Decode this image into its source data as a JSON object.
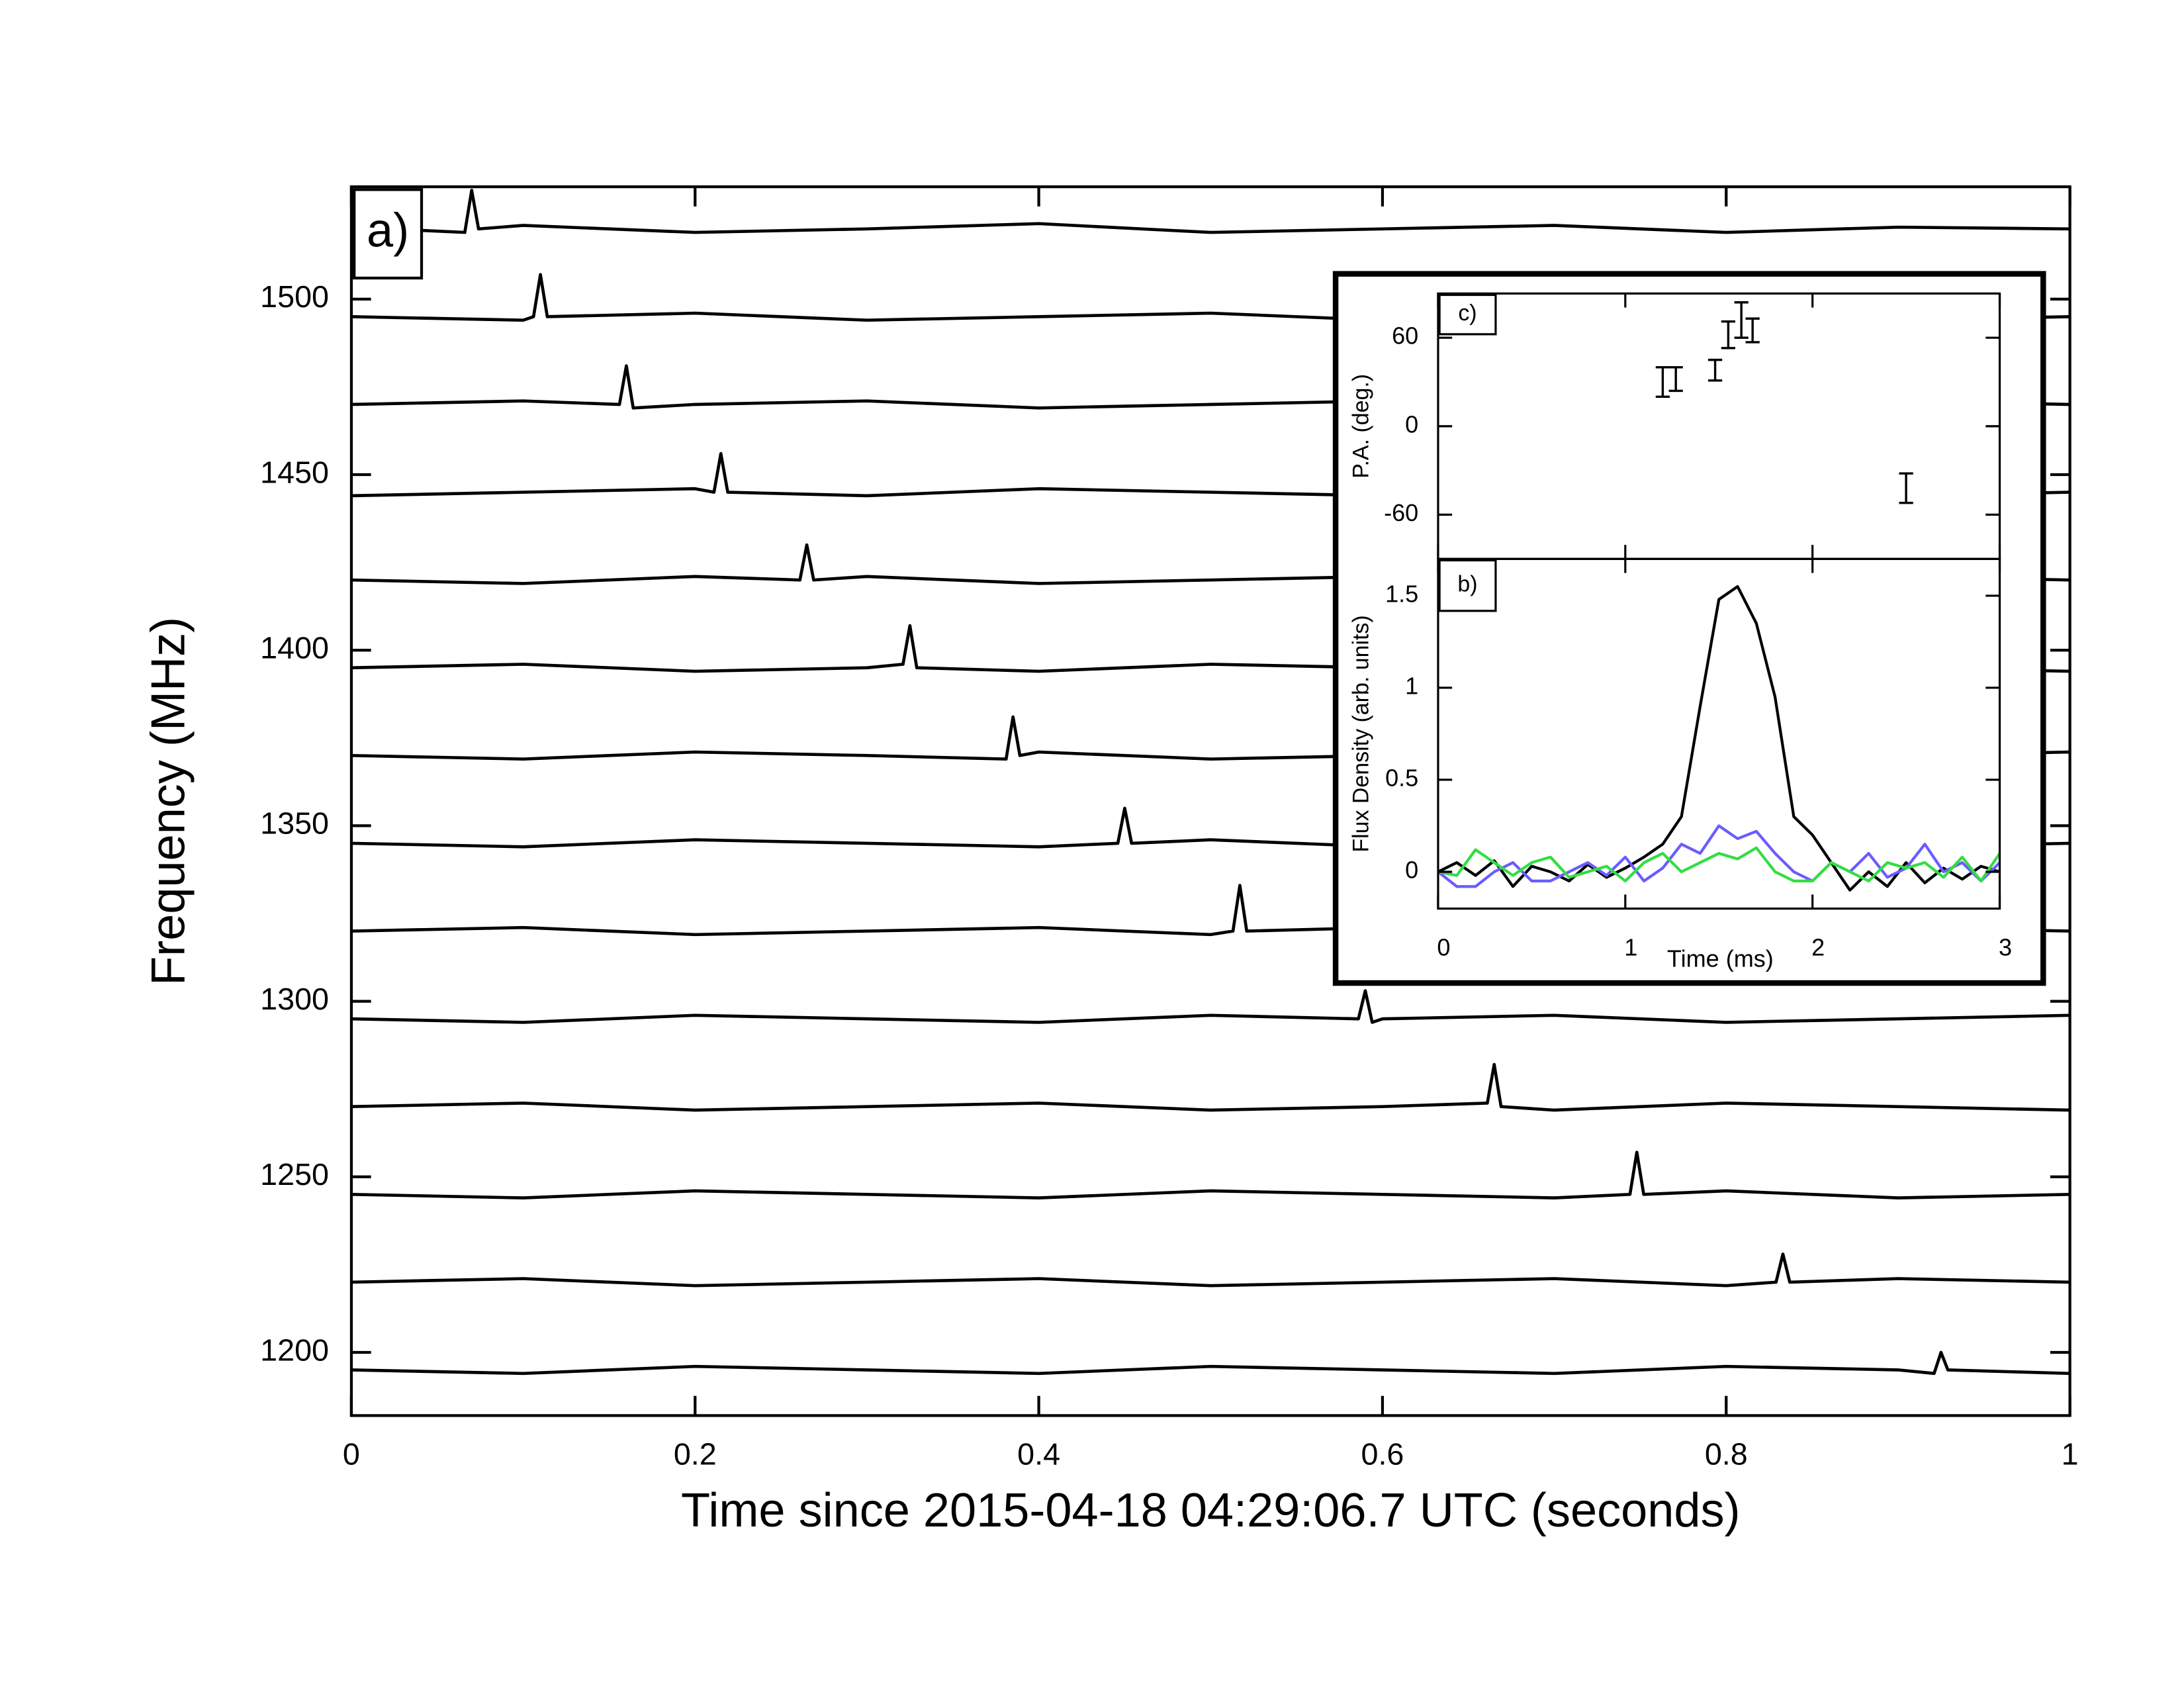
{
  "chart_data": [
    {
      "type": "line",
      "annotation": "a)",
      "xlabel": "Time since 2015-04-18 04:29:06.7 UTC (seconds)",
      "ylabel": "Frequency (MHz)",
      "xlim": [
        0,
        1
      ],
      "xticks": [
        0,
        0.2,
        0.4,
        0.6,
        0.8,
        1
      ],
      "ylim": [
        1182,
        1532
      ],
      "yticks": [
        1200,
        1250,
        1300,
        1350,
        1400,
        1450,
        1500
      ],
      "series": [
        {
          "color": "#000000",
          "x": [
            0,
            0.066,
            0.07,
            0.074,
            0.1,
            0.2,
            0.3,
            0.4,
            0.5,
            0.6,
            0.7,
            0.8,
            0.9,
            1
          ],
          "values": [
            1520.5,
            1519,
            1531,
            1520,
            1521,
            1519,
            1520,
            1521.5,
            1519,
            1520,
            1521,
            1519,
            1520.5,
            1520
          ]
        },
        {
          "color": "#000000",
          "x": [
            0,
            0.1,
            0.106,
            0.11,
            0.114,
            0.2,
            0.3,
            0.4,
            0.5,
            0.6,
            0.7,
            0.8,
            0.9,
            1
          ],
          "values": [
            1495,
            1494,
            1495,
            1507,
            1495,
            1496,
            1494,
            1495,
            1496,
            1494,
            1495,
            1496,
            1494,
            1495
          ]
        },
        {
          "color": "#000000",
          "x": [
            0,
            0.1,
            0.156,
            0.16,
            0.164,
            0.2,
            0.3,
            0.4,
            0.5,
            0.6,
            0.7,
            0.8,
            0.9,
            1
          ],
          "values": [
            1470,
            1471,
            1470,
            1481,
            1469,
            1470,
            1471,
            1469,
            1470,
            1471,
            1469,
            1470,
            1471,
            1470
          ]
        },
        {
          "color": "#000000",
          "x": [
            0,
            0.1,
            0.2,
            0.211,
            0.215,
            0.219,
            0.3,
            0.4,
            0.5,
            0.6,
            0.7,
            0.8,
            0.9,
            1
          ],
          "values": [
            1444,
            1445,
            1446,
            1445,
            1456,
            1445,
            1444,
            1446,
            1445,
            1444,
            1446,
            1445,
            1444,
            1445
          ]
        },
        {
          "color": "#000000",
          "x": [
            0,
            0.1,
            0.2,
            0.261,
            0.265,
            0.269,
            0.3,
            0.4,
            0.5,
            0.6,
            0.7,
            0.8,
            0.9,
            1
          ],
          "values": [
            1420,
            1419,
            1421,
            1420,
            1430,
            1420,
            1421,
            1419,
            1420,
            1421,
            1419,
            1420,
            1421,
            1420
          ]
        },
        {
          "color": "#000000",
          "x": [
            0,
            0.1,
            0.2,
            0.3,
            0.321,
            0.325,
            0.329,
            0.4,
            0.5,
            0.6,
            0.7,
            0.8,
            0.9,
            1
          ],
          "values": [
            1395,
            1396,
            1394,
            1395,
            1396,
            1407,
            1395,
            1394,
            1396,
            1395,
            1394,
            1396,
            1395,
            1394
          ]
        },
        {
          "color": "#000000",
          "x": [
            0,
            0.1,
            0.2,
            0.3,
            0.381,
            0.385,
            0.389,
            0.4,
            0.5,
            0.6,
            0.7,
            0.8,
            0.9,
            1
          ],
          "values": [
            1370,
            1369,
            1371,
            1370,
            1369,
            1381,
            1370,
            1371,
            1369,
            1370,
            1371,
            1369,
            1370,
            1371
          ]
        },
        {
          "color": "#000000",
          "x": [
            0,
            0.1,
            0.2,
            0.3,
            0.4,
            0.446,
            0.45,
            0.454,
            0.5,
            0.6,
            0.7,
            0.8,
            0.9,
            1
          ],
          "values": [
            1345,
            1344,
            1346,
            1345,
            1344,
            1345,
            1355,
            1345,
            1346,
            1344,
            1345,
            1346,
            1344,
            1345
          ]
        },
        {
          "color": "#000000",
          "x": [
            0,
            0.1,
            0.2,
            0.3,
            0.4,
            0.5,
            0.513,
            0.517,
            0.521,
            0.6,
            0.7,
            0.8,
            0.9,
            1
          ],
          "values": [
            1320,
            1321,
            1319,
            1320,
            1321,
            1319,
            1320,
            1333,
            1320,
            1321,
            1319,
            1320,
            1321,
            1320
          ]
        },
        {
          "color": "#000000",
          "x": [
            0,
            0.1,
            0.2,
            0.3,
            0.4,
            0.5,
            0.586,
            0.59,
            0.594,
            0.6,
            0.7,
            0.8,
            0.9,
            1
          ],
          "values": [
            1295,
            1294,
            1296,
            1295,
            1294,
            1296,
            1295,
            1303,
            1294,
            1295,
            1296,
            1294,
            1295,
            1296
          ]
        },
        {
          "color": "#000000",
          "x": [
            0,
            0.1,
            0.2,
            0.3,
            0.4,
            0.5,
            0.6,
            0.661,
            0.665,
            0.669,
            0.7,
            0.8,
            0.9,
            1
          ],
          "values": [
            1270,
            1271,
            1269,
            1270,
            1271,
            1269,
            1270,
            1271,
            1282,
            1270,
            1269,
            1271,
            1270,
            1269
          ]
        },
        {
          "color": "#000000",
          "x": [
            0,
            0.1,
            0.2,
            0.3,
            0.4,
            0.5,
            0.6,
            0.7,
            0.744,
            0.748,
            0.752,
            0.8,
            0.9,
            1
          ],
          "values": [
            1245,
            1244,
            1246,
            1245,
            1244,
            1246,
            1245,
            1244,
            1245,
            1257,
            1245,
            1246,
            1244,
            1245
          ]
        },
        {
          "color": "#000000",
          "x": [
            0,
            0.1,
            0.2,
            0.3,
            0.4,
            0.5,
            0.6,
            0.7,
            0.8,
            0.829,
            0.833,
            0.837,
            0.9,
            1
          ],
          "values": [
            1220,
            1221,
            1219,
            1220,
            1221,
            1219,
            1220,
            1221,
            1219,
            1220,
            1228,
            1220,
            1221,
            1220
          ]
        },
        {
          "color": "#000000",
          "x": [
            0,
            0.1,
            0.2,
            0.3,
            0.4,
            0.5,
            0.6,
            0.7,
            0.8,
            0.9,
            0.921,
            0.925,
            0.929,
            1
          ],
          "values": [
            1195,
            1194,
            1196,
            1195,
            1194,
            1196,
            1195,
            1194,
            1196,
            1195,
            1194,
            1200,
            1195,
            1194
          ]
        }
      ]
    },
    {
      "type": "errorbar",
      "annotation": "c)",
      "ylabel": "P.A. (deg.)",
      "xlim": [
        0,
        3
      ],
      "xticks": [
        0,
        1,
        2,
        3
      ],
      "ylim": [
        -90,
        90
      ],
      "yticks": [
        -60,
        0,
        60
      ],
      "series": [
        {
          "color": "#000000",
          "x": [
            1.2,
            1.27,
            1.48,
            1.55,
            1.62,
            1.68,
            2.5
          ],
          "values": [
            30,
            32,
            38,
            62,
            72,
            65,
            -42
          ],
          "errors": [
            10,
            8,
            7,
            9,
            12,
            8,
            10
          ]
        }
      ]
    },
    {
      "type": "line",
      "annotation": "b)",
      "xlabel": "Time (ms)",
      "ylabel": "Flux Density (arb. units)",
      "xlim": [
        0,
        3
      ],
      "xticks": [
        0,
        1,
        2,
        3
      ],
      "ylim": [
        -0.2,
        1.7
      ],
      "yticks": [
        0,
        0.5,
        1,
        1.5
      ],
      "x": [
        0,
        0.1,
        0.2,
        0.3,
        0.4,
        0.5,
        0.6,
        0.7,
        0.8,
        0.9,
        1,
        1.1,
        1.2,
        1.3,
        1.4,
        1.5,
        1.6,
        1.7,
        1.8,
        1.9,
        2,
        2.1,
        2.2,
        2.3,
        2.4,
        2.5,
        2.6,
        2.7,
        2.8,
        2.9,
        3
      ],
      "series": [
        {
          "color": "#000000",
          "values": [
            0,
            0.05,
            -0.02,
            0.06,
            -0.08,
            0.03,
            0,
            -0.05,
            0.04,
            -0.03,
            0.02,
            0.08,
            0.15,
            0.3,
            0.9,
            1.48,
            1.55,
            1.35,
            0.95,
            0.3,
            0.2,
            0.05,
            -0.1,
            0,
            -0.08,
            0.05,
            -0.06,
            0.02,
            -0.04,
            0.03,
            0
          ]
        },
        {
          "color": "#6a5cff",
          "values": [
            0,
            -0.08,
            -0.08,
            0,
            0.05,
            -0.05,
            -0.05,
            0,
            0.05,
            -0.02,
            0.08,
            -0.05,
            0.02,
            0.15,
            0.1,
            0.25,
            0.18,
            0.22,
            0.1,
            0,
            -0.05,
            0.05,
            0,
            0.1,
            -0.03,
            0.02,
            0.15,
            0,
            0.05,
            -0.05,
            0.05
          ]
        },
        {
          "color": "#33dd44",
          "values": [
            0,
            -0.02,
            0.12,
            0.05,
            -0.02,
            0.05,
            0.08,
            -0.03,
            0,
            0.03,
            -0.05,
            0.05,
            0.1,
            0,
            0.05,
            0.1,
            0.07,
            0.13,
            0,
            -0.05,
            -0.05,
            0.05,
            0,
            -0.05,
            0.05,
            0.02,
            0.05,
            -0.03,
            0.08,
            -0.05,
            0.1
          ]
        }
      ]
    }
  ]
}
